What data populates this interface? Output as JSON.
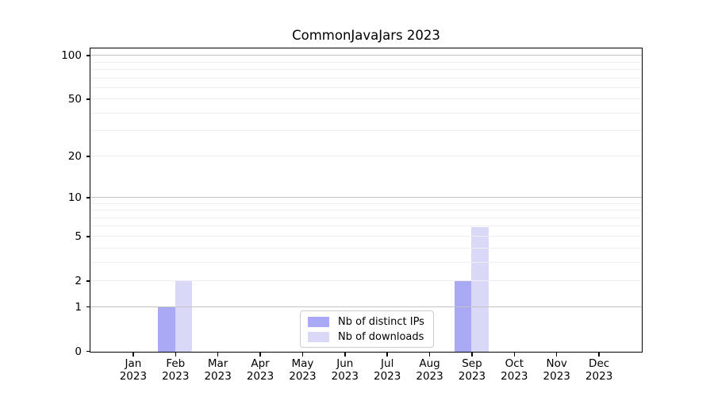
{
  "title": "CommonJavaJars 2023",
  "chart_data": {
    "type": "bar",
    "title": "CommonJavaJars 2023",
    "x_axis": {
      "months": [
        "Jan",
        "Feb",
        "Mar",
        "Apr",
        "May",
        "Jun",
        "Jul",
        "Aug",
        "Sep",
        "Oct",
        "Nov",
        "Dec"
      ],
      "year": "2023"
    },
    "y_axis": {
      "scale": "log1p",
      "tick_values": [
        0,
        1,
        2,
        5,
        10,
        20,
        50,
        100
      ],
      "tick_labels": [
        "0",
        "1",
        "2",
        "5",
        "10",
        "20",
        "50",
        "100"
      ],
      "major_gridline_values": [
        1,
        10,
        100
      ],
      "minor_gridline_values": [
        2,
        3,
        4,
        5,
        6,
        7,
        8,
        9,
        20,
        30,
        40,
        50,
        60,
        70,
        80,
        90
      ],
      "ylim": [
        0,
        112
      ]
    },
    "series": [
      {
        "name": "Nb of distinct IPs",
        "color": "#a9a9f5",
        "values": [
          0,
          1,
          0,
          0,
          0,
          0,
          0,
          0,
          2,
          0,
          0,
          0
        ]
      },
      {
        "name": "Nb of downloads",
        "color": "#d9d9f7",
        "values": [
          0,
          2,
          0,
          0,
          0,
          0,
          0,
          0,
          6,
          0,
          0,
          0
        ]
      }
    ],
    "legend": {
      "position": "lower center",
      "entries": [
        "Nb of distinct IPs",
        "Nb of downloads"
      ]
    },
    "grid": true
  },
  "colors": {
    "background": "#ffffff",
    "axis": "#000000",
    "text": "#000000",
    "grid_major": "#c3c3c3",
    "grid_minor": "#efefef",
    "legend_border": "#cccccc"
  }
}
